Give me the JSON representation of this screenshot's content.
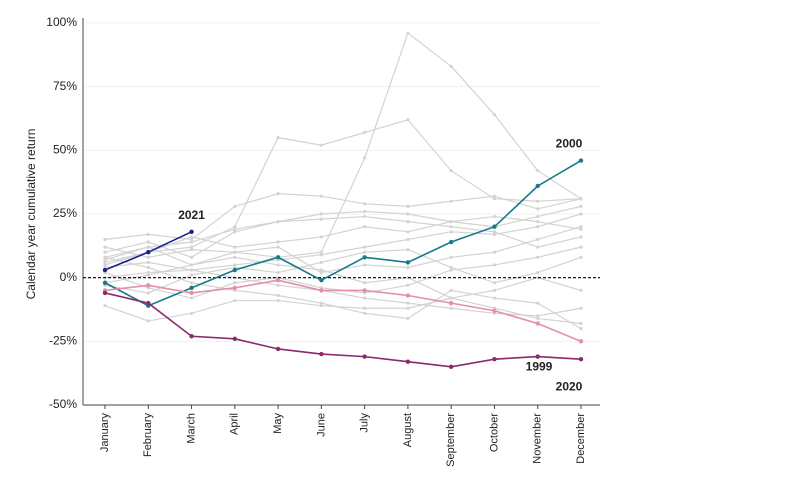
{
  "chart_data": {
    "type": "line",
    "y_label": "Calendar year cumulative return",
    "categories": [
      "January",
      "February",
      "March",
      "April",
      "May",
      "June",
      "July",
      "August",
      "September",
      "October",
      "November",
      "December"
    ],
    "ylim": [
      -50,
      100
    ],
    "yticks": [
      {
        "value": -50,
        "label": "-50%"
      },
      {
        "value": -25,
        "label": "-25%"
      },
      {
        "value": 0,
        "label": "0%"
      },
      {
        "value": 25,
        "label": "25%"
      },
      {
        "value": 50,
        "label": "50%"
      },
      {
        "value": 75,
        "label": "75%"
      },
      {
        "value": 100,
        "label": "100%"
      }
    ],
    "grid": true,
    "series": [
      {
        "color": "#d3d3d3",
        "values": [
          15,
          17,
          15,
          28,
          33,
          32,
          29,
          28,
          30,
          32,
          27,
          31
        ]
      },
      {
        "color": "#d3d3d3",
        "values": [
          5,
          10,
          12,
          20,
          55,
          52,
          57,
          62,
          42,
          31,
          30,
          31
        ]
      },
      {
        "color": "#d3d3d3",
        "values": [
          8,
          12,
          5,
          10,
          8,
          10,
          47,
          96,
          83,
          64,
          42,
          31
        ]
      },
      {
        "color": "#d3d3d3",
        "values": [
          10,
          14,
          8,
          18,
          22,
          25,
          26,
          25,
          22,
          20,
          24,
          28
        ]
      },
      {
        "color": "#d3d3d3",
        "values": [
          -11,
          -17,
          -14,
          -9,
          -9,
          -11,
          -12,
          -12,
          -8,
          -12,
          -16,
          -18
        ]
      },
      {
        "color": "#d3d3d3",
        "values": [
          0,
          2,
          3,
          5,
          7,
          9,
          12,
          15,
          18,
          17,
          20,
          25
        ]
      },
      {
        "color": "#d3d3d3",
        "values": [
          8,
          4,
          -2,
          -5,
          -7,
          -10,
          -14,
          -16,
          -5,
          -8,
          -10,
          -20
        ]
      },
      {
        "color": "#d3d3d3",
        "values": [
          -3,
          -6,
          1,
          4,
          2,
          6,
          10,
          11,
          4,
          -2,
          2,
          8
        ]
      },
      {
        "color": "#d3d3d3",
        "values": [
          6,
          10,
          16,
          12,
          14,
          16,
          20,
          18,
          22,
          24,
          22,
          19
        ]
      },
      {
        "color": "#d3d3d3",
        "values": [
          2,
          -4,
          -8,
          -2,
          0,
          -4,
          -6,
          -3,
          3,
          5,
          8,
          12
        ]
      },
      {
        "color": "#d3d3d3",
        "values": [
          12,
          8,
          11,
          10,
          12,
          2,
          5,
          4,
          8,
          10,
          15,
          20
        ]
      },
      {
        "color": "#d3d3d3",
        "values": [
          -2,
          1,
          5,
          8,
          5,
          3,
          -2,
          0,
          -8,
          -5,
          0,
          -5
        ]
      },
      {
        "color": "#d3d3d3",
        "values": [
          4,
          6,
          3,
          0,
          -3,
          -5,
          -8,
          -10,
          -12,
          -14,
          -15,
          -12
        ]
      },
      {
        "color": "#d3d3d3",
        "values": [
          7,
          12,
          14,
          19,
          22,
          23,
          24,
          22,
          20,
          18,
          12,
          16
        ]
      },
      {
        "name": "2021",
        "color": "#1b1f8a",
        "values": [
          3,
          10,
          18,
          null,
          null,
          null,
          null,
          null,
          null,
          null,
          null,
          null
        ]
      },
      {
        "name": "2000",
        "color": "#17798a",
        "values": [
          -2,
          -11,
          -4,
          3,
          8,
          -1,
          8,
          6,
          14,
          20,
          36,
          46
        ]
      },
      {
        "name": "1999",
        "color": "#e48fa9",
        "values": [
          -5,
          -3,
          -6,
          -4,
          -1,
          -5,
          -5,
          -7,
          -10,
          -13,
          -18,
          -25
        ]
      },
      {
        "name": "2020",
        "color": "#8a2a6a",
        "values": [
          -6,
          -10,
          -23,
          -24,
          -28,
          -30,
          -31,
          -33,
          -35,
          -32,
          -31,
          -32
        ]
      }
    ]
  }
}
